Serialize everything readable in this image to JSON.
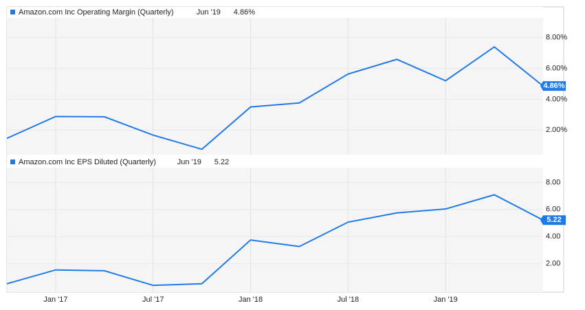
{
  "chart_data": [
    {
      "type": "line",
      "x": [
        "2016-09",
        "2016-12",
        "2017-03",
        "2017-06",
        "2017-09",
        "2017-12",
        "2018-03",
        "2018-06",
        "2018-09",
        "2018-12",
        "2019-03",
        "2019-06"
      ],
      "series": [
        {
          "name": "Amazon.com Inc Operating Margin (Quarterly)",
          "color": "#1f7ae8",
          "values": [
            1.46,
            2.88,
            2.86,
            1.67,
            0.75,
            3.5,
            3.76,
            5.64,
            6.59,
            5.2,
            7.4,
            4.86
          ],
          "last_x_label": "Jun '19",
          "last_value_label": "4.86%"
        }
      ],
      "xlim": [
        "2016-09",
        "2019-06"
      ],
      "ylim": [
        0.4,
        10.0
      ],
      "yticks": [
        {
          "value": 2,
          "label": "2.00%"
        },
        {
          "value": 4,
          "label": "4.00%"
        },
        {
          "value": 6,
          "label": "6.00%"
        },
        {
          "value": 8,
          "label": "8.00%"
        }
      ],
      "grid": true
    },
    {
      "type": "line",
      "x": [
        "2016-09",
        "2016-12",
        "2017-03",
        "2017-06",
        "2017-09",
        "2017-12",
        "2018-03",
        "2018-06",
        "2018-09",
        "2018-12",
        "2019-03",
        "2019-06"
      ],
      "series": [
        {
          "name": "Amazon.com Inc EPS Diluted (Quarterly)",
          "color": "#1f7ae8",
          "values": [
            0.52,
            1.54,
            1.48,
            0.4,
            0.52,
            3.75,
            3.27,
            5.07,
            5.75,
            6.04,
            7.09,
            5.22
          ],
          "last_x_label": "Jun '19",
          "last_value_label": "5.22"
        }
      ],
      "xlim": [
        "2016-09",
        "2019-06"
      ],
      "ylim": [
        -0.1,
        9.9
      ],
      "yticks": [
        {
          "value": 2,
          "label": "2.00"
        },
        {
          "value": 4,
          "label": "4.00"
        },
        {
          "value": 6,
          "label": "6.00"
        },
        {
          "value": 8,
          "label": "8.00"
        }
      ],
      "xticks": [
        {
          "value": "2017-01",
          "label": "Jan '17"
        },
        {
          "value": "2017-07",
          "label": "Jul '17"
        },
        {
          "value": "2018-01",
          "label": "Jan '18"
        },
        {
          "value": "2018-07",
          "label": "Jul '18"
        },
        {
          "value": "2019-01",
          "label": "Jan '19"
        }
      ],
      "grid": true
    }
  ]
}
